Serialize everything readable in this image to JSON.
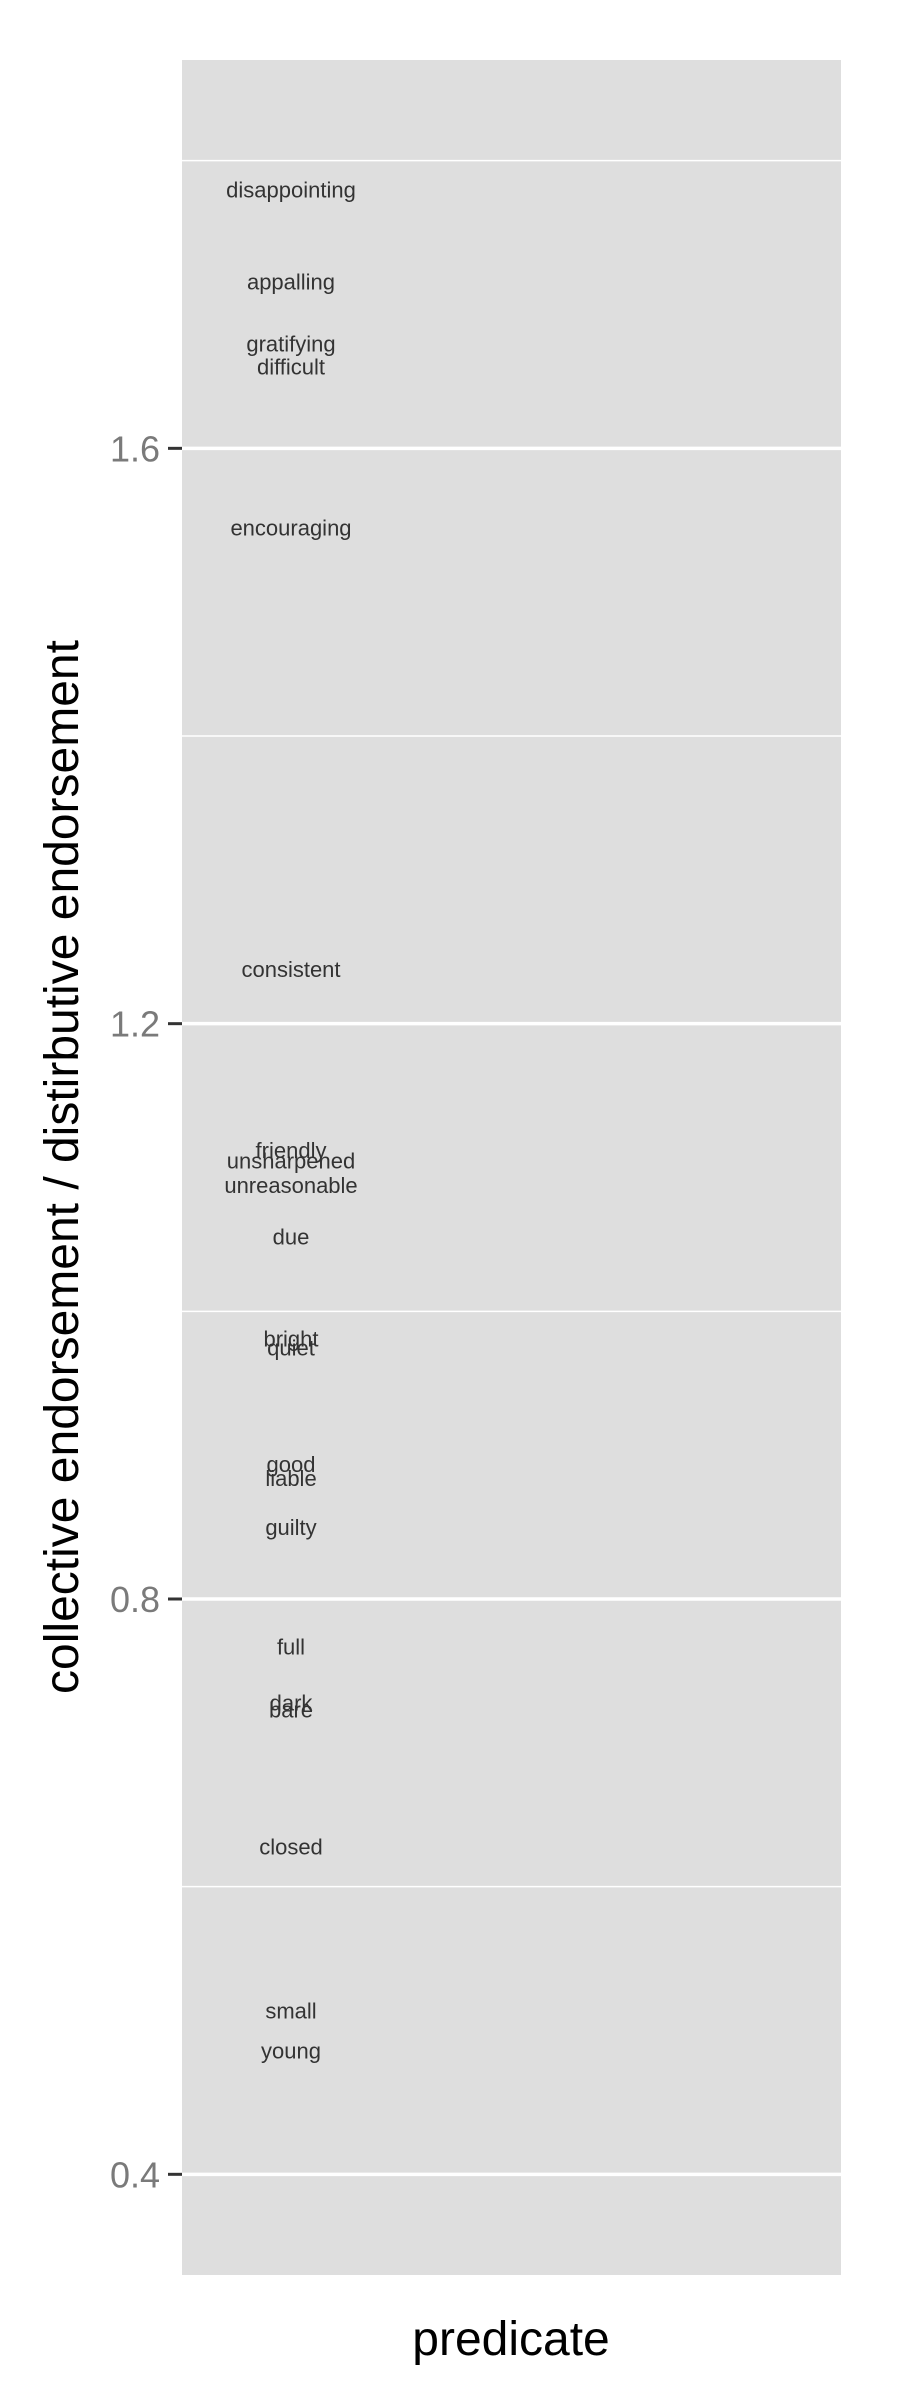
{
  "chart_data": {
    "type": "scatter",
    "title": "",
    "xlabel": "predicate",
    "ylabel": "collective endorsement / distirbutive endorsement",
    "ylim": [
      0.33,
      1.87
    ],
    "yticks": [
      0.4,
      0.8,
      1.2,
      1.6
    ],
    "grid": true,
    "panel_color": "#dedede",
    "grid_color": "#ffffff",
    "points": [
      {
        "label": "disappointing",
        "y": 1.78
      },
      {
        "label": "appalling",
        "y": 1.716
      },
      {
        "label": "gratifying",
        "y": 1.673
      },
      {
        "label": "difficult",
        "y": 1.657
      },
      {
        "label": "encouraging",
        "y": 1.545
      },
      {
        "label": "consistent",
        "y": 1.238
      },
      {
        "label": "friendly",
        "y": 1.112
      },
      {
        "label": "unsharpened",
        "y": 1.105
      },
      {
        "label": "unreasonable",
        "y": 1.088
      },
      {
        "label": "due",
        "y": 1.052
      },
      {
        "label": "bright",
        "y": 0.981
      },
      {
        "label": "quiet",
        "y": 0.975
      },
      {
        "label": "good",
        "y": 0.894
      },
      {
        "label": "liable",
        "y": 0.884
      },
      {
        "label": "guilty",
        "y": 0.85
      },
      {
        "label": "full",
        "y": 0.767
      },
      {
        "label": "dark",
        "y": 0.728
      },
      {
        "label": "bare",
        "y": 0.723
      },
      {
        "label": "closed",
        "y": 0.628
      },
      {
        "label": "small",
        "y": 0.514
      },
      {
        "label": "young",
        "y": 0.486
      }
    ]
  }
}
